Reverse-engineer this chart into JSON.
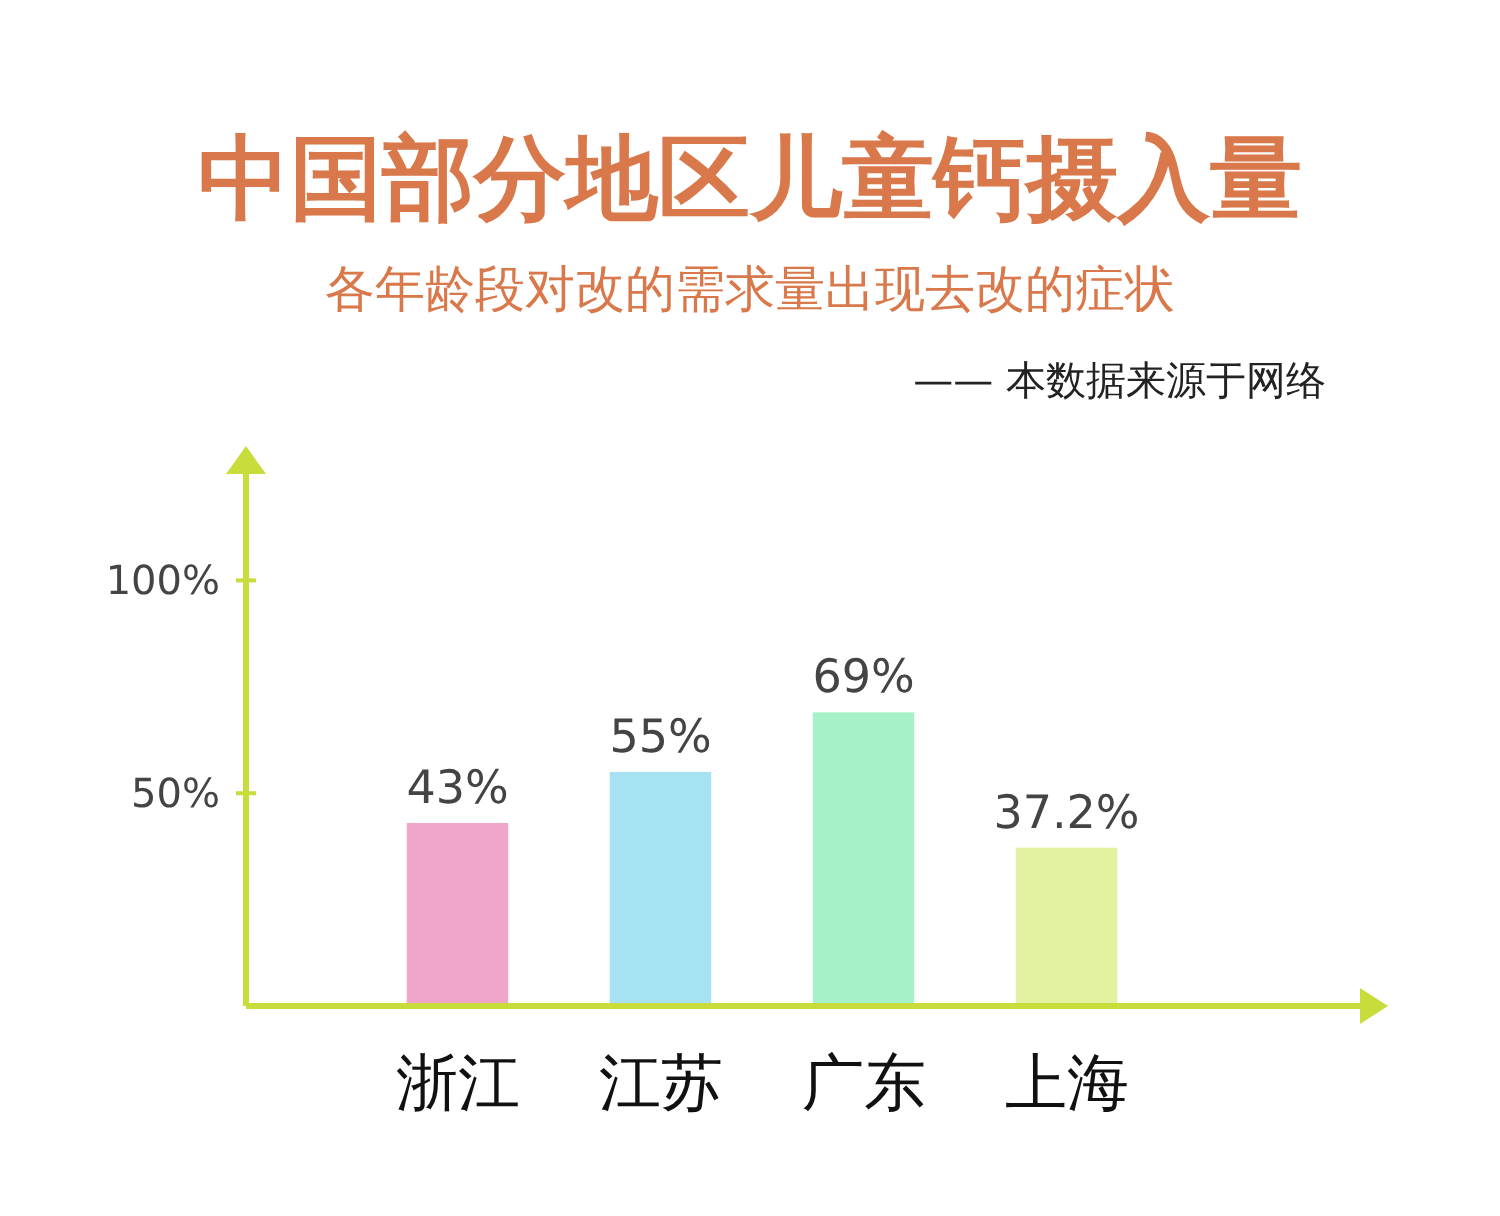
{
  "chart_data": {
    "type": "bar",
    "title": "中国部分地区儿童钙摄入量",
    "subtitle": "各年龄段对改的需求量出现去改的症状",
    "annotations": [
      "—— 本数据来源于网络"
    ],
    "categories": [
      "浙江",
      "江苏",
      "广东",
      "上海"
    ],
    "values": [
      43,
      55,
      69,
      37.2
    ],
    "colors": [
      "#f0a6c8",
      "#a6e2f2",
      "#a6f2c8",
      "#e2f2a0"
    ],
    "value_labels": [
      "43%",
      "55%",
      "69%",
      "37.2%"
    ],
    "ylim": [
      0,
      125
    ],
    "yticks": [
      {
        "value": 50,
        "label": "50%"
      },
      {
        "value": 100,
        "label": "100%"
      }
    ],
    "grid": false
  }
}
